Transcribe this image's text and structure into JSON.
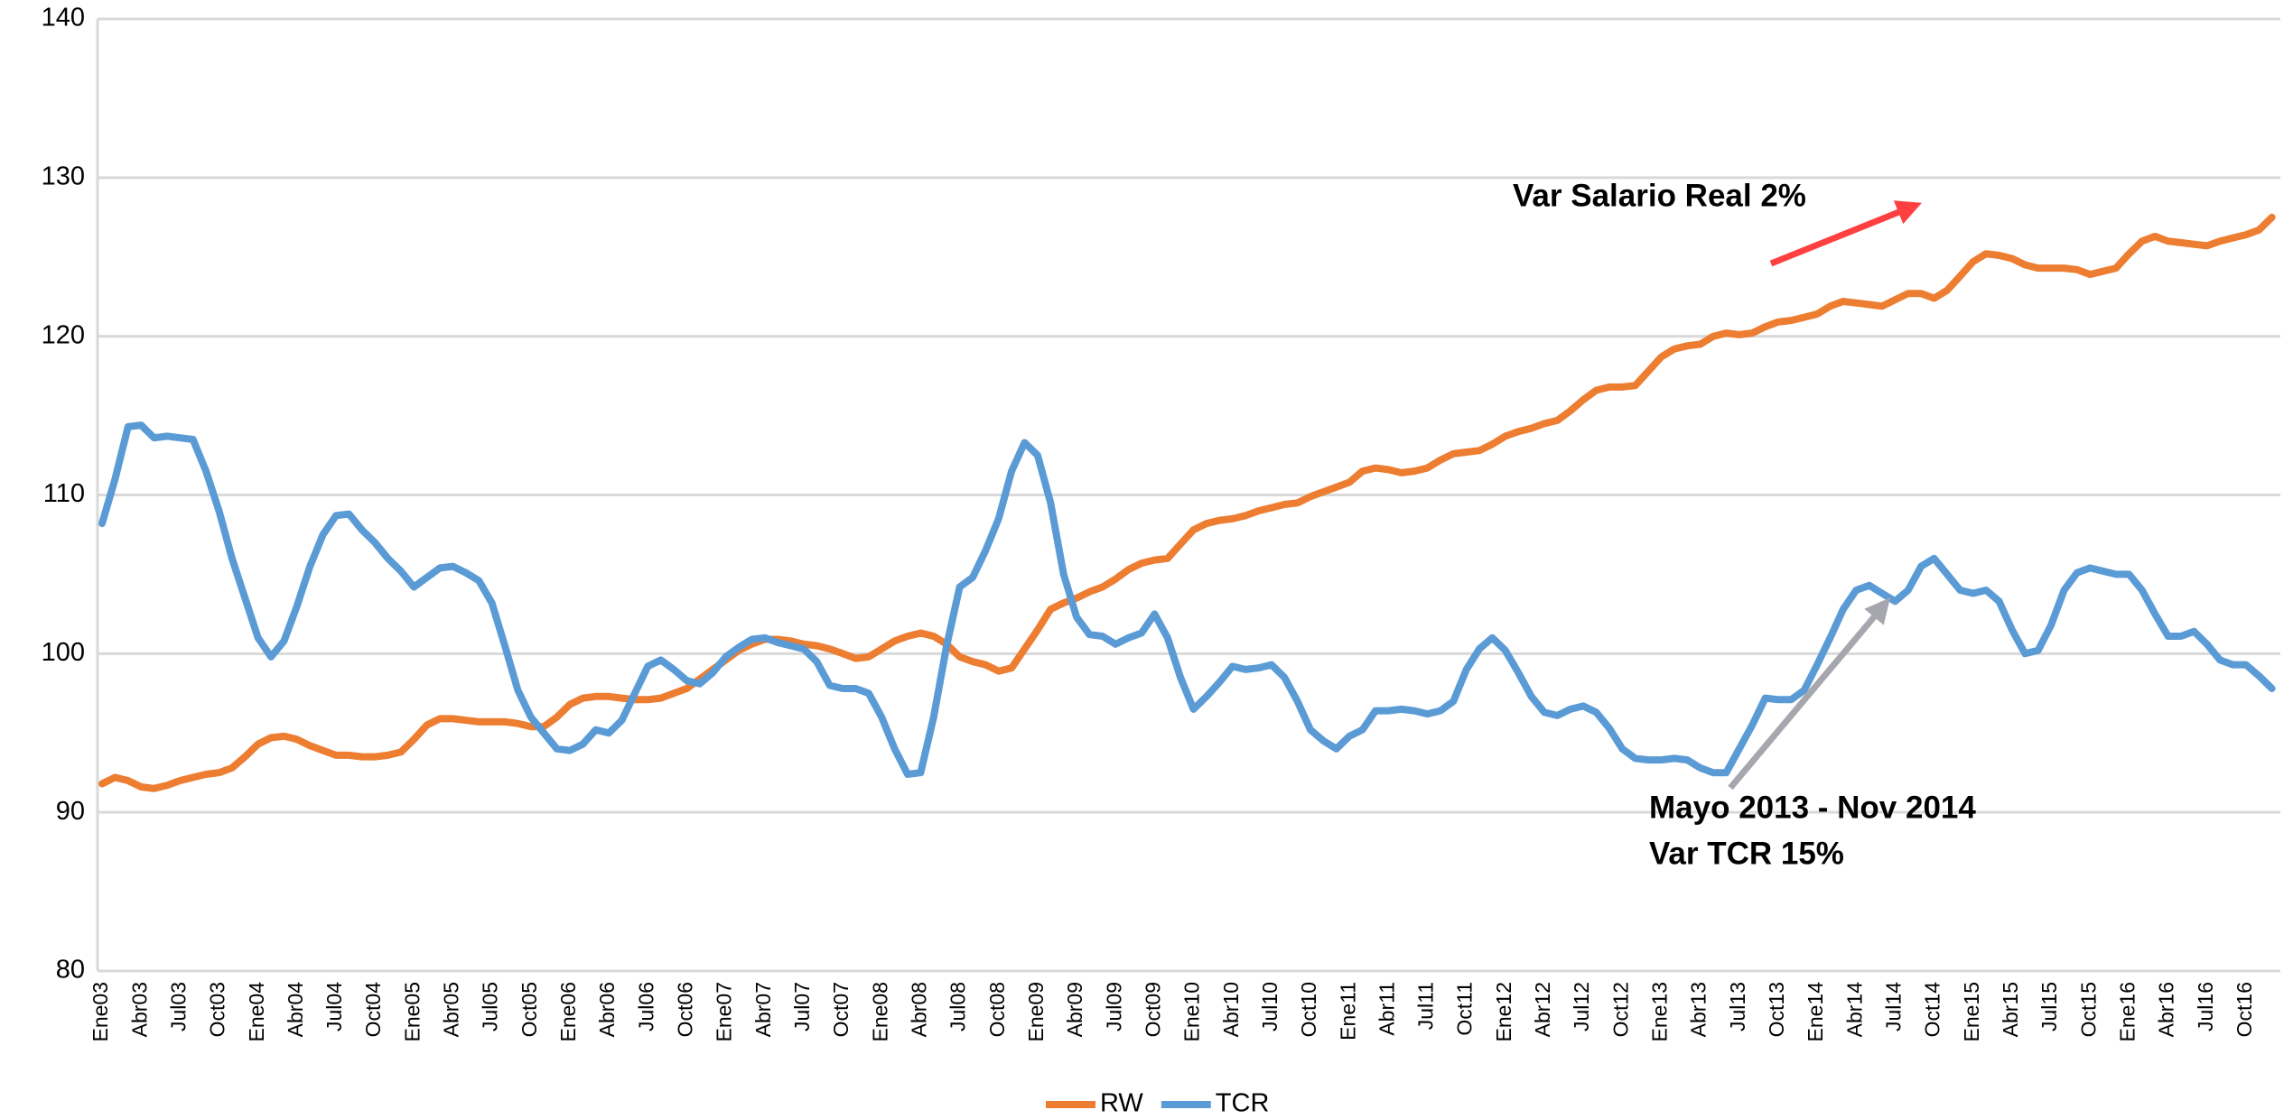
{
  "chart_data": {
    "type": "line",
    "categories": [
      "Ene03",
      null,
      null,
      "Abr03",
      null,
      null,
      "Jul03",
      null,
      null,
      "Oct03",
      null,
      null,
      "Ene04",
      null,
      null,
      "Abr04",
      null,
      null,
      "Jul04",
      null,
      null,
      "Oct04",
      null,
      null,
      "Ene05",
      null,
      null,
      "Abr05",
      null,
      null,
      "Jul05",
      null,
      null,
      "Oct05",
      null,
      null,
      "Ene06",
      null,
      null,
      "Abr06",
      null,
      null,
      "Jul06",
      null,
      null,
      "Oct06",
      null,
      null,
      "Ene07",
      null,
      null,
      "Abr07",
      null,
      null,
      "Jul07",
      null,
      null,
      "Oct07",
      null,
      null,
      "Ene08",
      null,
      null,
      "Abr08",
      null,
      null,
      "Jul08",
      null,
      null,
      "Oct08",
      null,
      null,
      "Ene09",
      null,
      null,
      "Abr09",
      null,
      null,
      "Jul09",
      null,
      null,
      "Oct09",
      null,
      null,
      "Ene10",
      null,
      null,
      "Abr10",
      null,
      null,
      "Jul10",
      null,
      null,
      "Oct10",
      null,
      null,
      "Ene11",
      null,
      null,
      "Abr11",
      null,
      null,
      "Jul11",
      null,
      null,
      "Oct11",
      null,
      null,
      "Ene12",
      null,
      null,
      "Abr12",
      null,
      null,
      "Jul12",
      null,
      null,
      "Oct12",
      null,
      null,
      "Ene13",
      null,
      null,
      "Abr13",
      null,
      null,
      "Jul13",
      null,
      null,
      "Oct13",
      null,
      null,
      "Ene14",
      null,
      null,
      "Abr14",
      null,
      null,
      "Jul14",
      null,
      null,
      "Oct14",
      null,
      null,
      "Ene15",
      null,
      null,
      "Abr15",
      null,
      null,
      "Jul15",
      null,
      null,
      "Oct15",
      null,
      null,
      "Ene16",
      null,
      null,
      "Abr16",
      null,
      null,
      "Jul16",
      null,
      null,
      "Oct16",
      null,
      null
    ],
    "series": [
      {
        "name": "RW",
        "color": "#ed7d31",
        "values": [
          91.8,
          92.2,
          92.0,
          91.6,
          91.5,
          91.7,
          92.0,
          92.2,
          92.4,
          92.5,
          92.8,
          93.5,
          94.3,
          94.7,
          94.8,
          94.6,
          94.2,
          93.9,
          93.6,
          93.6,
          93.5,
          93.5,
          93.6,
          93.8,
          94.6,
          95.5,
          95.9,
          95.9,
          95.8,
          95.7,
          95.7,
          95.7,
          95.6,
          95.4,
          95.4,
          96.0,
          96.8,
          97.2,
          97.3,
          97.3,
          97.2,
          97.1,
          97.1,
          97.2,
          97.5,
          97.8,
          98.4,
          99.0,
          99.6,
          100.2,
          100.6,
          100.9,
          100.9,
          100.8,
          100.6,
          100.5,
          100.3,
          100.0,
          99.7,
          99.8,
          100.3,
          100.8,
          101.1,
          101.3,
          101.1,
          100.6,
          99.8,
          99.5,
          99.3,
          98.9,
          99.1,
          100.3,
          101.5,
          102.8,
          103.2,
          103.5,
          103.9,
          104.2,
          104.7,
          105.3,
          105.7,
          105.9,
          106.0,
          106.9,
          107.8,
          108.2,
          108.4,
          108.5,
          108.7,
          109.0,
          109.2,
          109.4,
          109.5,
          109.9,
          110.2,
          110.5,
          110.8,
          111.5,
          111.7,
          111.6,
          111.4,
          111.5,
          111.7,
          112.2,
          112.6,
          112.7,
          112.8,
          113.2,
          113.7,
          114.0,
          114.2,
          114.5,
          114.7,
          115.3,
          116.0,
          116.6,
          116.8,
          116.8,
          116.9,
          117.8,
          118.7,
          119.2,
          119.4,
          119.5,
          120.0,
          120.2,
          120.1,
          120.2,
          120.6,
          120.9,
          121.0,
          121.2,
          121.4,
          121.9,
          122.2,
          122.1,
          122.0,
          121.9,
          122.3,
          122.7,
          122.7,
          122.4,
          122.9,
          123.8,
          124.7,
          125.2,
          125.1,
          124.9,
          124.5,
          124.3,
          124.3,
          124.3,
          124.2,
          123.9,
          124.1,
          124.3,
          125.2,
          126.0,
          126.3,
          126.0,
          125.9,
          125.8,
          125.7,
          126.0,
          126.2,
          126.4,
          126.7,
          127.5
        ]
      },
      {
        "name": "TCR",
        "color": "#5b9bd5",
        "values": [
          108.2,
          111.0,
          114.3,
          114.4,
          113.6,
          113.7,
          113.6,
          113.5,
          111.5,
          109.0,
          106.0,
          103.5,
          101.0,
          99.8,
          100.8,
          103.0,
          105.5,
          107.5,
          108.7,
          108.8,
          107.8,
          107.0,
          106.0,
          105.2,
          104.2,
          104.8,
          105.4,
          105.5,
          105.1,
          104.6,
          103.2,
          100.5,
          97.7,
          96.0,
          95.0,
          94.0,
          93.9,
          94.3,
          95.2,
          95.0,
          95.8,
          97.5,
          99.2,
          99.6,
          99.0,
          98.3,
          98.1,
          98.8,
          99.8,
          100.4,
          100.9,
          101.0,
          100.7,
          100.5,
          100.3,
          99.5,
          98.0,
          97.8,
          97.8,
          97.5,
          96.0,
          94.0,
          92.4,
          92.5,
          96.0,
          100.5,
          104.2,
          104.8,
          106.5,
          108.5,
          111.5,
          113.3,
          112.5,
          109.5,
          105.0,
          102.3,
          101.2,
          101.1,
          100.6,
          101.0,
          101.3,
          102.5,
          101.0,
          98.5,
          96.5,
          97.3,
          98.2,
          99.2,
          99.0,
          99.1,
          99.3,
          98.5,
          97.0,
          95.2,
          94.5,
          94.0,
          94.8,
          95.2,
          96.4,
          96.4,
          96.5,
          96.4,
          96.2,
          96.4,
          97.0,
          99.0,
          100.3,
          101.0,
          100.2,
          98.8,
          97.3,
          96.3,
          96.1,
          96.5,
          96.7,
          96.3,
          95.3,
          94.0,
          93.4,
          93.3,
          93.3,
          93.4,
          93.3,
          92.8,
          92.5,
          92.5,
          94.0,
          95.5,
          97.2,
          97.1,
          97.1,
          97.7,
          99.3,
          101.0,
          102.8,
          104.0,
          104.3,
          103.8,
          103.3,
          104.0,
          105.5,
          106.0,
          105.0,
          104.0,
          103.8,
          104.0,
          103.3,
          101.5,
          100.0,
          100.2,
          101.8,
          104.0,
          105.1,
          105.4,
          105.2,
          105.0,
          105.0,
          104.0,
          102.5,
          101.1,
          101.1,
          101.4,
          100.6,
          99.6,
          99.3,
          99.3,
          98.6,
          97.8
        ]
      }
    ],
    "ylim": [
      80,
      140
    ],
    "yticks": [
      80,
      90,
      100,
      110,
      120,
      130,
      140
    ],
    "grid": true,
    "legend": "bottom",
    "annotations": [
      "Var Salario Real 2%",
      "Mayo 2013 - Nov 2014",
      "Var TCR 15%"
    ]
  }
}
